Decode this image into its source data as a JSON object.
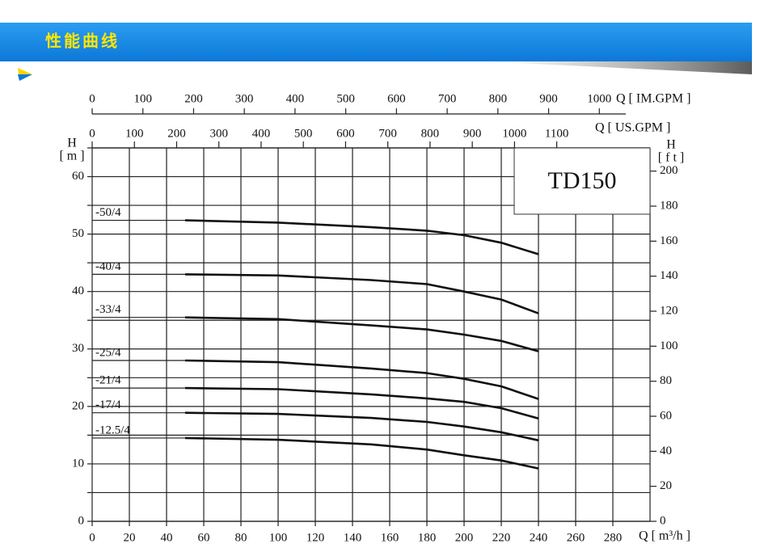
{
  "header": {
    "title": "性能曲线"
  },
  "chart_data": {
    "type": "line",
    "annotation": "TD150",
    "x": [
      50,
      100,
      150,
      180,
      200,
      220,
      240
    ],
    "xlim": [
      0,
      300
    ],
    "xticks": [
      0,
      20,
      40,
      60,
      80,
      100,
      120,
      140,
      160,
      180,
      200,
      220,
      240,
      260,
      280
    ],
    "xlabel": "Q [ m³/h ]",
    "x2lim": [
      0,
      1320.9
    ],
    "x2ticks": [
      0,
      100,
      200,
      300,
      400,
      500,
      600,
      700,
      800,
      900,
      1000,
      1100
    ],
    "x2label": "Q [ US.GPM ]",
    "x3lim": [
      0,
      1100
    ],
    "x3ticks": [
      0,
      100,
      200,
      300,
      400,
      500,
      600,
      700,
      800,
      900,
      1000
    ],
    "x3label": "Q [ IM.GPM ]",
    "ylim": [
      0,
      65
    ],
    "yticks": [
      0,
      10,
      20,
      30,
      40,
      50,
      60
    ],
    "yminorticks": [
      5,
      15,
      25,
      35,
      45,
      55,
      65
    ],
    "ylabel": "H",
    "yunit": "[ m ]",
    "y2lim": [
      0,
      213.25
    ],
    "y2ticks": [
      0,
      20,
      40,
      60,
      80,
      100,
      120,
      140,
      160,
      180,
      200
    ],
    "y2label": "H",
    "y2unit": "[ f t ]",
    "grid": true,
    "series": [
      {
        "name": "-50/4",
        "color": "#111111",
        "values": [
          52.4,
          52.0,
          51.2,
          50.6,
          49.8,
          48.5,
          46.5
        ]
      },
      {
        "name": "-40/4",
        "color": "#111111",
        "values": [
          43.0,
          42.8,
          42.0,
          41.3,
          40.0,
          38.6,
          36.2
        ]
      },
      {
        "name": "-33/4",
        "color": "#111111",
        "values": [
          35.5,
          35.2,
          34.1,
          33.4,
          32.5,
          31.4,
          29.6
        ]
      },
      {
        "name": "-25/4",
        "color": "#111111",
        "values": [
          28.0,
          27.7,
          26.6,
          25.8,
          24.8,
          23.5,
          21.3
        ]
      },
      {
        "name": "-21/4",
        "color": "#111111",
        "values": [
          23.2,
          23.0,
          22.1,
          21.4,
          20.8,
          19.7,
          17.9
        ]
      },
      {
        "name": "-17/4",
        "color": "#111111",
        "values": [
          18.9,
          18.7,
          18.0,
          17.3,
          16.5,
          15.5,
          14.1
        ]
      },
      {
        "name": "-12.5/4",
        "color": "#111111",
        "values": [
          14.5,
          14.2,
          13.4,
          12.5,
          11.5,
          10.6,
          9.2
        ]
      }
    ]
  }
}
